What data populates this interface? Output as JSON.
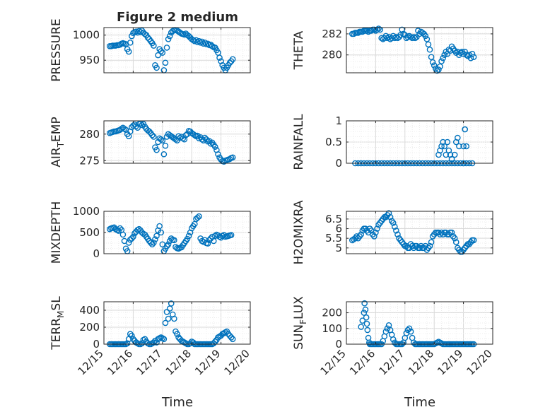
{
  "figure": {
    "title": "Figure 2 medium",
    "xlabel": "Time",
    "xticks": [
      "12/15",
      "12/16",
      "12/17",
      "12/18",
      "12/19",
      "12/20"
    ],
    "marker_color": "#0072BD",
    "axis_color": "#262626",
    "grid_color": "#d9d9d9"
  },
  "chart_data": [
    {
      "type": "scatter",
      "ylabel": "PRESSURE",
      "ylim": [
        925,
        1015
      ],
      "yticks": [
        950,
        1000
      ],
      "xlim": [
        0,
        5
      ],
      "grid": true,
      "x": [
        0.2,
        0.25,
        0.3,
        0.35,
        0.4,
        0.45,
        0.5,
        0.55,
        0.6,
        0.65,
        0.7,
        0.75,
        0.8,
        0.85,
        0.9,
        0.95,
        1.0,
        1.05,
        1.1,
        1.15,
        1.2,
        1.25,
        1.3,
        1.35,
        1.4,
        1.45,
        1.5,
        1.55,
        1.6,
        1.65,
        1.7,
        1.75,
        1.8,
        1.85,
        1.9,
        1.95,
        2.0,
        2.05,
        2.1,
        2.15,
        2.2,
        2.25,
        2.3,
        2.35,
        2.4,
        2.45,
        2.5,
        2.55,
        2.6,
        2.65,
        2.7,
        2.75,
        2.8,
        2.85,
        2.9,
        2.95,
        3.0,
        3.05,
        3.1,
        3.15,
        3.2,
        3.25,
        3.3,
        3.35,
        3.4,
        3.45,
        3.5,
        3.55,
        3.6,
        3.65,
        3.7,
        3.75,
        3.8,
        3.85,
        3.9,
        3.95,
        4.0,
        4.05,
        4.1,
        4.15,
        4.2,
        4.25,
        4.3,
        4.35,
        4.4
      ],
      "y": [
        978,
        978,
        979,
        979,
        979,
        980,
        980,
        981,
        983,
        984,
        983,
        982,
        972,
        967,
        985,
        998,
        1004,
        1006,
        1007,
        1005,
        1008,
        1006,
        1009,
        1005,
        1002,
        1000,
        995,
        992,
        988,
        984,
        979,
        940,
        935,
        960,
        972,
        968,
        965,
        930,
        945,
        975,
        992,
        998,
        1005,
        1008,
        1010,
        1010,
        1009,
        1007,
        1005,
        1003,
        1002,
        1001,
        1003,
        1000,
        998,
        995,
        992,
        990,
        988,
        990,
        986,
        988,
        985,
        987,
        983,
        985,
        982,
        983,
        980,
        981,
        978,
        976,
        975,
        970,
        965,
        955,
        948,
        940,
        935,
        930,
        935,
        940,
        945,
        948,
        952
      ]
    },
    {
      "type": "scatter",
      "ylabel": "THETA",
      "ylim": [
        278.3,
        282.6
      ],
      "yticks": [
        280,
        282
      ],
      "xlim": [
        0,
        5
      ],
      "grid": true,
      "x": [
        0.2,
        0.25,
        0.3,
        0.35,
        0.4,
        0.45,
        0.5,
        0.55,
        0.6,
        0.65,
        0.7,
        0.75,
        0.8,
        0.85,
        0.9,
        0.95,
        1.0,
        1.05,
        1.1,
        1.15,
        1.2,
        1.25,
        1.3,
        1.35,
        1.4,
        1.45,
        1.5,
        1.55,
        1.6,
        1.65,
        1.7,
        1.75,
        1.8,
        1.85,
        1.9,
        1.95,
        2.0,
        2.05,
        2.1,
        2.15,
        2.2,
        2.25,
        2.3,
        2.35,
        2.4,
        2.45,
        2.5,
        2.55,
        2.6,
        2.65,
        2.7,
        2.75,
        2.8,
        2.85,
        2.9,
        2.95,
        3.0,
        3.05,
        3.1,
        3.15,
        3.2,
        3.25,
        3.3,
        3.35,
        3.4,
        3.45,
        3.5,
        3.55,
        3.6,
        3.65,
        3.7,
        3.75,
        3.8,
        3.85,
        3.9,
        3.95,
        4.0,
        4.05,
        4.1,
        4.15,
        4.2,
        4.25,
        4.3,
        4.35
      ],
      "y": [
        282.0,
        282.0,
        282.1,
        282.1,
        282.1,
        282.2,
        282.2,
        282.2,
        282.3,
        282.3,
        282.3,
        282.2,
        282.3,
        282.3,
        282.4,
        282.4,
        282.3,
        282.4,
        282.5,
        282.4,
        281.6,
        281.5,
        281.6,
        281.8,
        281.6,
        281.7,
        281.5,
        281.6,
        281.8,
        281.6,
        281.7,
        281.6,
        281.7,
        281.9,
        282.4,
        282.0,
        281.9,
        281.6,
        281.7,
        281.8,
        281.7,
        281.6,
        281.7,
        281.6,
        281.7,
        282.3,
        282.0,
        282.2,
        282.1,
        282.0,
        281.8,
        281.5,
        281.0,
        280.5,
        279.8,
        279.3,
        279.0,
        278.7,
        278.5,
        278.6,
        278.9,
        279.4,
        279.7,
        280.0,
        280.3,
        280.1,
        280.5,
        280.4,
        280.8,
        280.6,
        280.4,
        280.2,
        280.3,
        280.0,
        280.2,
        280.3,
        280.1,
        280.3,
        280.0,
        279.9,
        280.0,
        279.7,
        280.1,
        279.8
      ]
    },
    {
      "type": "scatter",
      "ylabel": "AIR_TEMP",
      "ylim": [
        274.5,
        282.5
      ],
      "yticks": [
        275,
        280
      ],
      "xlim": [
        0,
        5
      ],
      "grid": true,
      "x": [
        0.2,
        0.25,
        0.3,
        0.35,
        0.4,
        0.45,
        0.5,
        0.55,
        0.6,
        0.65,
        0.7,
        0.75,
        0.8,
        0.85,
        0.9,
        0.95,
        1.0,
        1.05,
        1.1,
        1.15,
        1.2,
        1.25,
        1.3,
        1.35,
        1.4,
        1.45,
        1.5,
        1.55,
        1.6,
        1.65,
        1.7,
        1.75,
        1.8,
        1.85,
        1.9,
        1.95,
        2.0,
        2.05,
        2.1,
        2.15,
        2.2,
        2.25,
        2.3,
        2.35,
        2.4,
        2.45,
        2.5,
        2.55,
        2.6,
        2.65,
        2.7,
        2.75,
        2.8,
        2.85,
        2.9,
        2.95,
        3.0,
        3.05,
        3.1,
        3.15,
        3.2,
        3.25,
        3.3,
        3.35,
        3.4,
        3.45,
        3.5,
        3.55,
        3.6,
        3.65,
        3.7,
        3.75,
        3.8,
        3.85,
        3.9,
        3.95,
        4.0,
        4.05,
        4.1,
        4.15,
        4.2,
        4.25,
        4.3,
        4.35,
        4.4
      ],
      "y": [
        280.2,
        280.3,
        280.4,
        280.5,
        280.5,
        280.6,
        280.7,
        280.8,
        281.0,
        281.2,
        281.0,
        280.8,
        280.0,
        279.6,
        280.5,
        281.3,
        281.6,
        281.8,
        281.5,
        281.2,
        281.9,
        282.0,
        281.7,
        281.9,
        281.4,
        281.0,
        280.7,
        280.5,
        280.2,
        279.8,
        279.5,
        277.5,
        277.0,
        278.5,
        279.2,
        279.0,
        278.8,
        276.2,
        277.8,
        279.5,
        280.0,
        279.8,
        279.6,
        279.4,
        279.2,
        279.0,
        278.8,
        279.6,
        279.3,
        279.5,
        279.2,
        279.0,
        279.8,
        280.0,
        280.6,
        280.5,
        280.2,
        280.0,
        279.8,
        279.6,
        279.7,
        279.2,
        279.4,
        279.0,
        278.8,
        279.3,
        279.0,
        278.6,
        278.7,
        278.2,
        278.4,
        278.0,
        277.6,
        277.0,
        276.2,
        275.6,
        275.2,
        274.9,
        274.8,
        275.0,
        275.1,
        275.2,
        275.3,
        275.5,
        275.6
      ]
    },
    {
      "type": "scatter",
      "ylabel": "RAINFALL",
      "ylim": [
        0,
        1
      ],
      "yticks": [
        0,
        0.5,
        1
      ],
      "xlim": [
        0,
        5
      ],
      "grid": true,
      "x": [
        0.3,
        0.4,
        0.5,
        0.6,
        0.7,
        0.8,
        0.9,
        1.0,
        1.1,
        1.2,
        1.3,
        1.4,
        1.5,
        1.6,
        1.7,
        1.8,
        1.9,
        2.0,
        2.1,
        2.2,
        2.3,
        2.4,
        2.5,
        2.6,
        2.7,
        2.8,
        2.9,
        3.0,
        3.1,
        3.2,
        3.3,
        3.4,
        3.5,
        3.6,
        3.7,
        3.8,
        3.9,
        4.0,
        4.1,
        4.2,
        4.3,
        3.15,
        3.2,
        3.25,
        3.3,
        3.35,
        3.4,
        3.45,
        3.5,
        3.55,
        3.6,
        3.7,
        3.75,
        3.8,
        3.85,
        4.0,
        4.05,
        4.05,
        4.1,
        4.0
      ],
      "y": [
        0,
        0,
        0,
        0,
        0,
        0,
        0,
        0,
        0,
        0,
        0,
        0,
        0,
        0,
        0,
        0,
        0,
        0,
        0,
        0,
        0,
        0,
        0,
        0,
        0,
        0,
        0,
        0,
        0,
        0,
        0,
        0,
        0,
        0,
        0,
        0,
        0,
        0,
        0,
        0,
        0,
        0.2,
        0.3,
        0.4,
        0.5,
        0.4,
        0.2,
        0.5,
        0.3,
        0.2,
        0.1,
        0.2,
        0.5,
        0.6,
        0.4,
        0.4,
        0.8,
        0.8,
        0.4,
        0.0
      ]
    },
    {
      "type": "scatter",
      "ylabel": "MIXDEPTH",
      "ylim": [
        0,
        1000
      ],
      "yticks": [
        0,
        500,
        1000
      ],
      "xlim": [
        0,
        5
      ],
      "grid": true,
      "x": [
        0.2,
        0.25,
        0.3,
        0.35,
        0.4,
        0.45,
        0.5,
        0.55,
        0.6,
        0.65,
        0.7,
        0.75,
        0.8,
        0.85,
        0.9,
        0.95,
        1.0,
        1.05,
        1.1,
        1.15,
        1.2,
        1.25,
        1.3,
        1.35,
        1.4,
        1.45,
        1.5,
        1.55,
        1.6,
        1.65,
        1.7,
        1.75,
        1.8,
        1.85,
        1.9,
        1.95,
        2.0,
        2.05,
        2.1,
        2.15,
        2.2,
        2.25,
        2.3,
        2.35,
        2.4,
        2.45,
        2.5,
        2.55,
        2.6,
        2.65,
        2.7,
        2.75,
        2.8,
        2.85,
        2.9,
        2.95,
        3.0,
        3.05,
        3.1,
        3.15,
        3.2,
        3.25,
        3.3,
        3.35,
        3.4,
        3.45,
        3.5,
        3.55,
        3.6,
        3.65,
        3.7,
        3.75,
        3.8,
        3.85,
        3.9,
        3.95,
        4.0,
        4.05,
        4.1,
        4.15,
        4.2,
        4.25,
        4.3,
        4.35
      ],
      "y": [
        580,
        600,
        610,
        620,
        580,
        560,
        540,
        600,
        560,
        450,
        300,
        120,
        60,
        260,
        330,
        360,
        400,
        480,
        520,
        560,
        580,
        550,
        500,
        470,
        450,
        400,
        350,
        300,
        260,
        220,
        260,
        340,
        420,
        550,
        650,
        500,
        220,
        60,
        120,
        180,
        220,
        300,
        360,
        330,
        320,
        160,
        130,
        120,
        140,
        150,
        200,
        250,
        300,
        350,
        420,
        500,
        600,
        650,
        700,
        820,
        850,
        880,
        360,
        300,
        280,
        320,
        250,
        240,
        320,
        360,
        400,
        300,
        420,
        450,
        430,
        400,
        380,
        420,
        440,
        400,
        410,
        420,
        430,
        440
      ]
    },
    {
      "type": "scatter",
      "ylabel": "H2OMIXRA",
      "ylim": [
        4.7,
        6.9
      ],
      "yticks": [
        5,
        5.5,
        6,
        6.5
      ],
      "xlim": [
        0,
        5
      ],
      "grid": true,
      "x": [
        0.2,
        0.25,
        0.3,
        0.35,
        0.4,
        0.45,
        0.5,
        0.55,
        0.6,
        0.65,
        0.7,
        0.75,
        0.8,
        0.85,
        0.9,
        0.95,
        1.0,
        1.05,
        1.1,
        1.15,
        1.2,
        1.25,
        1.3,
        1.35,
        1.4,
        1.45,
        1.5,
        1.55,
        1.6,
        1.65,
        1.7,
        1.75,
        1.8,
        1.85,
        1.9,
        1.95,
        2.0,
        2.05,
        2.1,
        2.15,
        2.2,
        2.25,
        2.3,
        2.35,
        2.4,
        2.45,
        2.5,
        2.55,
        2.6,
        2.65,
        2.7,
        2.75,
        2.8,
        2.85,
        2.9,
        2.95,
        3.0,
        3.05,
        3.1,
        3.15,
        3.2,
        3.25,
        3.3,
        3.35,
        3.4,
        3.45,
        3.5,
        3.55,
        3.6,
        3.65,
        3.7,
        3.75,
        3.8,
        3.85,
        3.9,
        3.95,
        4.0,
        4.05,
        4.1,
        4.15,
        4.2,
        4.25,
        4.3,
        4.35
      ],
      "y": [
        5.4,
        5.45,
        5.5,
        5.6,
        5.5,
        5.6,
        5.7,
        5.9,
        6.0,
        6.0,
        5.9,
        5.8,
        6.0,
        5.9,
        5.7,
        5.6,
        5.8,
        6.0,
        6.2,
        6.3,
        6.4,
        6.5,
        6.6,
        6.6,
        6.7,
        6.8,
        6.6,
        6.4,
        6.3,
        6.1,
        5.9,
        5.7,
        5.5,
        5.4,
        5.3,
        5.2,
        5.1,
        5.1,
        5.0,
        5.0,
        5.2,
        5.1,
        5.0,
        5.1,
        5.1,
        5.0,
        5.0,
        5.1,
        5.0,
        5.0,
        5.1,
        4.9,
        5.0,
        5.1,
        5.3,
        5.6,
        5.7,
        5.8,
        5.8,
        5.8,
        5.7,
        5.8,
        5.7,
        5.8,
        5.8,
        5.7,
        5.7,
        5.8,
        5.8,
        5.6,
        5.5,
        5.3,
        5.0,
        4.9,
        4.8,
        4.8,
        4.9,
        5.0,
        5.1,
        5.2,
        5.2,
        5.3,
        5.4,
        5.4
      ]
    },
    {
      "type": "scatter",
      "ylabel": "TERR_MSL",
      "ylim": [
        0,
        500
      ],
      "yticks": [
        0,
        200,
        400
      ],
      "xlim": [
        0,
        5
      ],
      "grid": true,
      "x": [
        0.2,
        0.25,
        0.3,
        0.35,
        0.4,
        0.45,
        0.5,
        0.55,
        0.6,
        0.65,
        0.7,
        0.75,
        0.8,
        0.85,
        0.9,
        0.95,
        1.0,
        1.05,
        1.1,
        1.15,
        1.2,
        1.25,
        1.3,
        1.35,
        1.4,
        1.45,
        1.5,
        1.55,
        1.6,
        1.65,
        1.7,
        1.75,
        1.8,
        1.85,
        1.9,
        1.95,
        2.0,
        2.05,
        2.1,
        2.15,
        2.2,
        2.25,
        2.3,
        2.35,
        2.4,
        2.45,
        2.5,
        2.55,
        2.6,
        2.65,
        2.7,
        2.75,
        2.8,
        2.85,
        2.9,
        2.95,
        3.0,
        3.05,
        3.1,
        3.15,
        3.2,
        3.25,
        3.3,
        3.35,
        3.4,
        3.45,
        3.5,
        3.55,
        3.6,
        3.65,
        3.7,
        3.75,
        3.8,
        3.85,
        3.9,
        3.95,
        4.0,
        4.05,
        4.1,
        4.15,
        4.2,
        4.25,
        4.3,
        4.35,
        4.4
      ],
      "y": [
        0,
        0,
        0,
        0,
        0,
        0,
        0,
        0,
        0,
        0,
        0,
        0,
        10,
        60,
        120,
        100,
        60,
        40,
        20,
        10,
        0,
        0,
        10,
        50,
        60,
        30,
        10,
        0,
        0,
        10,
        20,
        40,
        20,
        60,
        70,
        80,
        70,
        60,
        250,
        380,
        300,
        420,
        480,
        350,
        300,
        150,
        120,
        80,
        60,
        40,
        30,
        20,
        10,
        0,
        0,
        10,
        30,
        20,
        0,
        0,
        0,
        0,
        0,
        0,
        0,
        0,
        0,
        0,
        0,
        0,
        0,
        10,
        30,
        50,
        80,
        90,
        100,
        120,
        130,
        140,
        150,
        120,
        100,
        80,
        60
      ]
    },
    {
      "type": "scatter",
      "ylabel": "SUN_FLUX",
      "ylim": [
        0,
        270
      ],
      "yticks": [
        0,
        100,
        200
      ],
      "xlim": [
        0,
        5
      ],
      "grid": true,
      "x": [
        0.5,
        0.55,
        0.6,
        0.62,
        0.65,
        0.68,
        0.7,
        0.72,
        0.75,
        0.78,
        0.8,
        0.85,
        0.9,
        0.95,
        1.0,
        1.05,
        1.1,
        1.15,
        1.2,
        1.25,
        1.3,
        1.35,
        1.4,
        1.45,
        1.5,
        1.55,
        1.6,
        1.65,
        1.7,
        1.75,
        1.8,
        1.85,
        1.9,
        1.95,
        2.0,
        2.05,
        2.1,
        2.15,
        2.2,
        2.25,
        2.3,
        2.35,
        2.4,
        2.45,
        2.5,
        2.55,
        2.6,
        2.65,
        2.7,
        2.75,
        2.8,
        2.85,
        2.9,
        2.95,
        3.0,
        3.05,
        3.1,
        3.15,
        3.2,
        3.25,
        3.3,
        3.35,
        3.4,
        3.45,
        3.5,
        3.55,
        3.6,
        3.65,
        3.7,
        3.75,
        3.8,
        3.85,
        3.9,
        3.95,
        4.0,
        4.05,
        4.1,
        4.15,
        4.2,
        4.25,
        4.3,
        4.35
      ],
      "y": [
        110,
        150,
        200,
        260,
        220,
        170,
        130,
        90,
        40,
        10,
        0,
        0,
        0,
        0,
        0,
        0,
        0,
        0,
        0,
        20,
        50,
        80,
        100,
        120,
        90,
        60,
        30,
        10,
        0,
        0,
        0,
        0,
        0,
        10,
        40,
        70,
        90,
        100,
        80,
        40,
        10,
        0,
        0,
        0,
        0,
        0,
        0,
        0,
        0,
        0,
        0,
        0,
        0,
        0,
        0,
        5,
        10,
        15,
        10,
        5,
        0,
        0,
        0,
        0,
        0,
        0,
        0,
        0,
        0,
        0,
        0,
        0,
        0,
        0,
        0,
        0,
        0,
        0,
        0,
        0,
        0,
        0
      ]
    }
  ]
}
